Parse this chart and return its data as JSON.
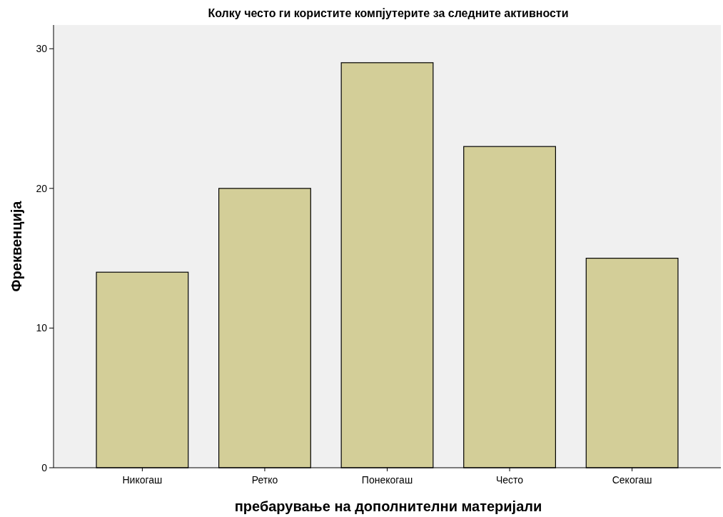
{
  "chart_data": {
    "type": "bar",
    "title": "Колку често ги користите компјутерите за следните активности",
    "xlabel": "пребарување на дополнителни материјали",
    "ylabel": "Фреквенција",
    "categories": [
      "Никогаш",
      "Ретко",
      "Понекогаш",
      "Често",
      "Секогаш"
    ],
    "values": [
      14,
      20,
      29,
      23,
      15
    ],
    "color": "#d3ce98",
    "ylim": [
      0,
      31.7
    ],
    "yticks": [
      0,
      10,
      20,
      30
    ],
    "grid": false
  }
}
